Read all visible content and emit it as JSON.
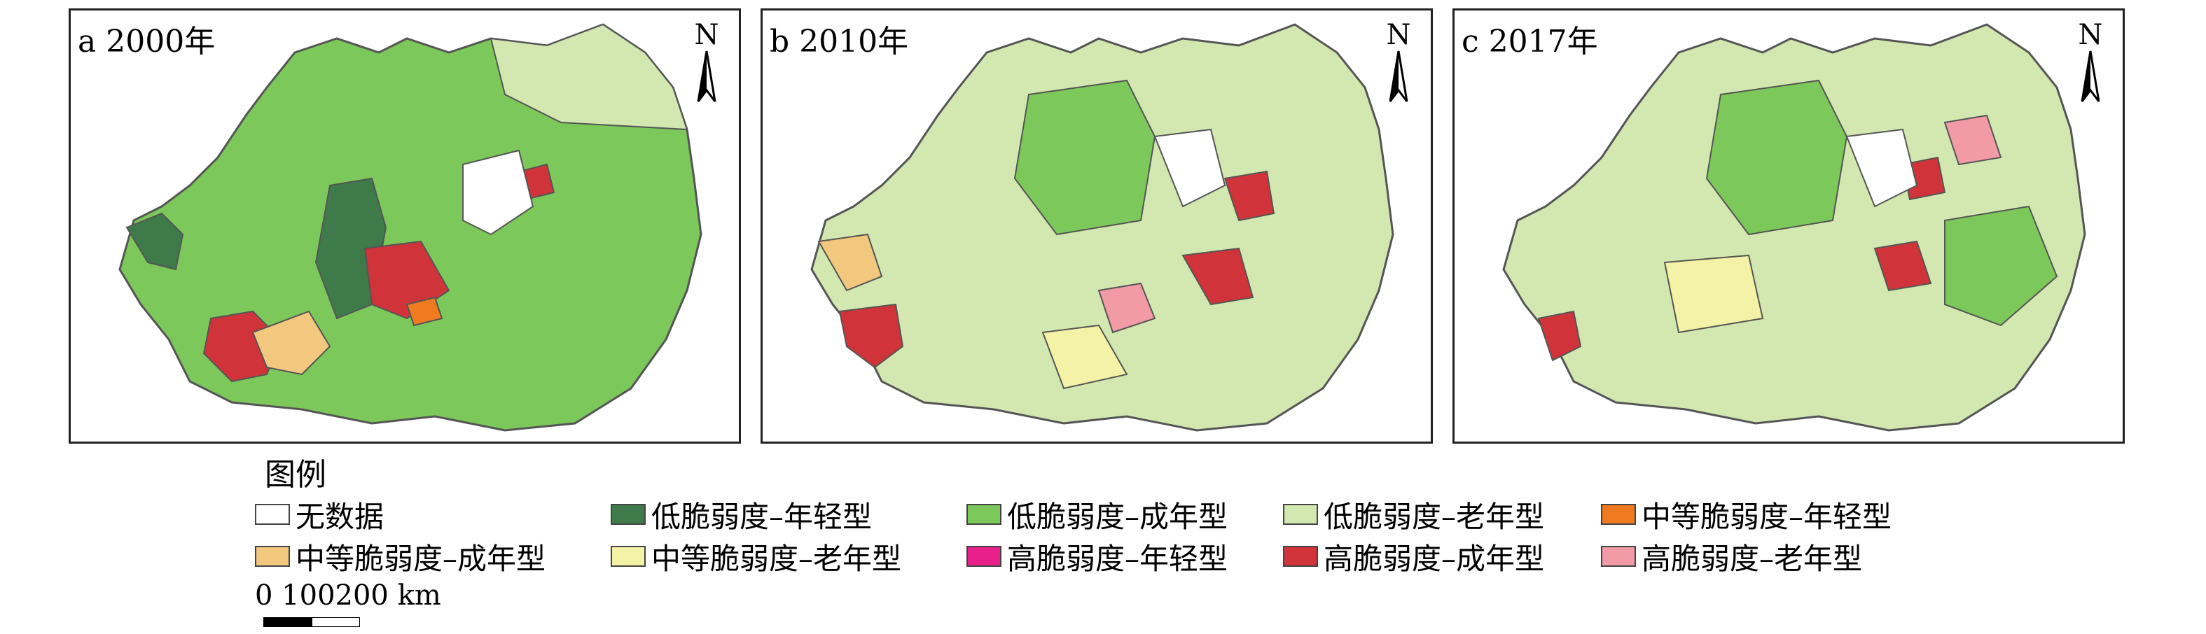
{
  "panels": [
    {
      "label": "a 2000年",
      "north": "N"
    },
    {
      "label": "b 2010年",
      "north": "N"
    },
    {
      "label": "c 2017年",
      "north": "N"
    }
  ],
  "legend": {
    "title": "图例",
    "items": [
      {
        "label": "无数据",
        "color": "#ffffff"
      },
      {
        "label": "低脆弱度–年轻型",
        "color": "#3f7a4a"
      },
      {
        "label": "低脆弱度–成年型",
        "color": "#7dc85a"
      },
      {
        "label": "低脆弱度–老年型",
        "color": "#d3e8b0"
      },
      {
        "label": "中等脆弱度–年轻型",
        "color": "#f07a20"
      },
      {
        "label": "中等脆弱度–成年型",
        "color": "#f2c77e"
      },
      {
        "label": "中等脆弱度–老年型",
        "color": "#f4f2a6"
      },
      {
        "label": "高脆弱度–年轻型",
        "color": "#e8208a"
      },
      {
        "label": "高脆弱度–成年型",
        "color": "#d0343a"
      },
      {
        "label": "高脆弱度–老年型",
        "color": "#f29aa6"
      }
    ]
  },
  "scale": {
    "label": "0 100200 km"
  },
  "colors": {
    "border": "#555555",
    "frame": "#222222"
  }
}
